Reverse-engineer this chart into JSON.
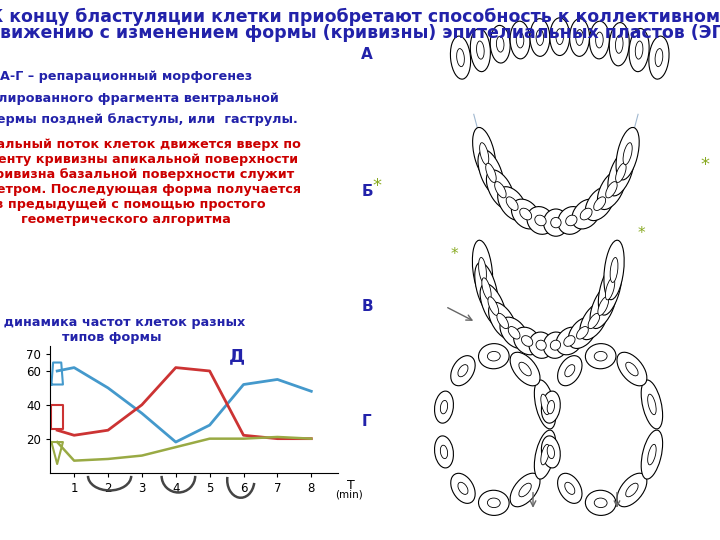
{
  "title_line1": "К концу бластуляции клетки приобретают способность к коллективному",
  "title_line2": "движению с изменением формы (кривизны) эпителиальных пластов (ЭП)",
  "title_color": "#2222aa",
  "title_fontsize": 12.5,
  "left_text_blue_lines": [
    "А-Г – репарационный морфогенез",
    "изолированного фрагмента вентральной",
    "эктодермы поздней бластулы, или  гаструлы."
  ],
  "left_text_blue_color": "#2222aa",
  "left_text_red": "Латеральный поток клеток движется вверх по\nградиенту кривизны апикальной поверхности\nЭП, кривизна базальной поверхности служит\nпараметром. Последующая форма получается\nиз предыдущей с помощью простого\nгеометрического алгоритма",
  "left_text_red_color": "#cc0000",
  "label_d_text": "Д – динамика частот клеток разных\nтипов формы",
  "label_d_color": "#2222aa",
  "plot_label_D": "Д",
  "plot_label_D_color": "#2222aa",
  "blue_line_x": [
    0.5,
    1.0,
    2.0,
    3.0,
    4.0,
    5.0,
    6.0,
    7.0,
    8.0
  ],
  "blue_line_y": [
    60,
    62,
    50,
    35,
    18,
    28,
    52,
    55,
    48
  ],
  "red_line_x": [
    0.5,
    1.0,
    2.0,
    3.0,
    4.0,
    5.0,
    6.0,
    7.0,
    8.0
  ],
  "red_line_y": [
    25,
    22,
    25,
    40,
    62,
    60,
    22,
    20,
    20
  ],
  "green_line_x": [
    0.5,
    1.0,
    2.0,
    3.0,
    4.0,
    5.0,
    6.0,
    7.0,
    8.0
  ],
  "green_line_y": [
    18,
    7,
    8,
    10,
    15,
    20,
    20,
    21,
    20
  ],
  "blue_color": "#4499cc",
  "red_color": "#cc3333",
  "green_color": "#99aa44",
  "yticks": [
    20,
    40,
    60,
    70
  ],
  "xticks": [
    1,
    2,
    3,
    4,
    5,
    6,
    7,
    8
  ],
  "ylim": [
    0,
    75
  ],
  "xlim": [
    0.3,
    8.8
  ],
  "bg_color": "#ffffff",
  "right_labels": [
    [
      "А",
      0.895
    ],
    [
      "Б",
      0.635
    ],
    [
      "В",
      0.405
    ],
    [
      "Г",
      0.175
    ]
  ],
  "green_star_color": "#88aa22",
  "arrow_color": "#666666",
  "circle_color": "#5599bb"
}
